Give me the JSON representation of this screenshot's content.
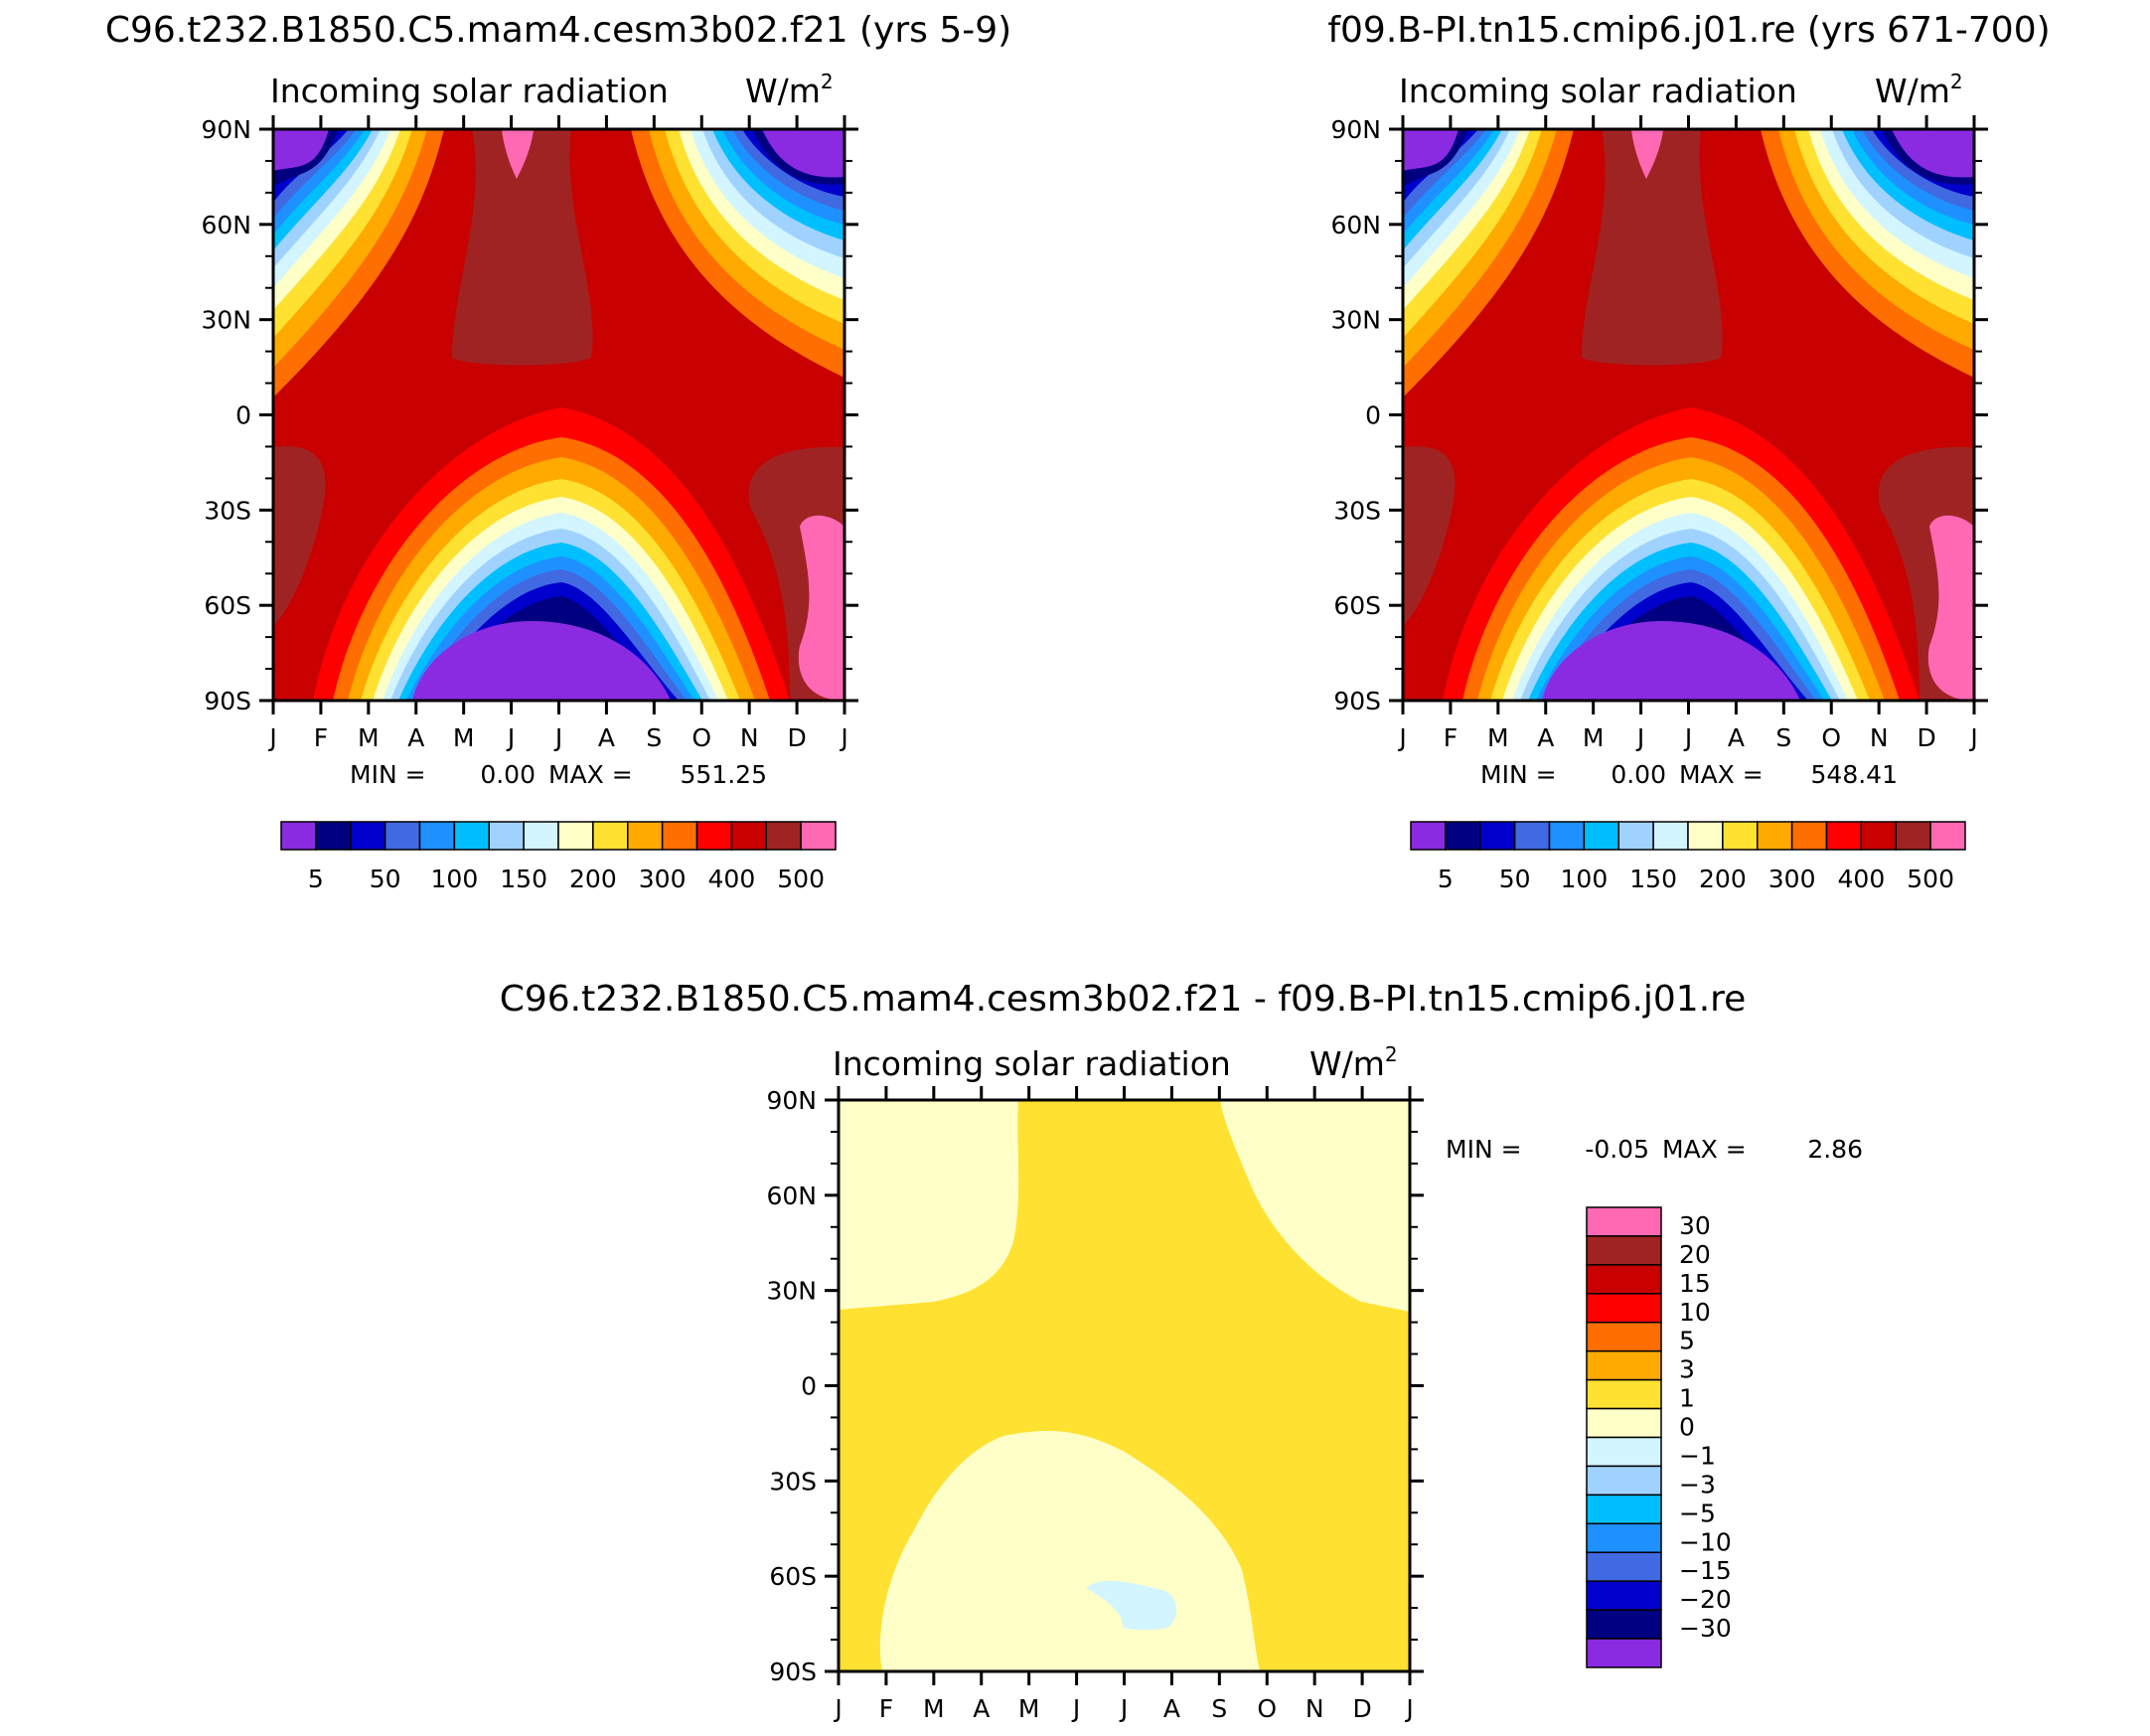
{
  "chart_data": [
    {
      "type": "heatmap",
      "title": "C96.t232.B1850.C5.mam4.cesm3b02.f21 (yrs 5-9)",
      "subtitle": "Incoming solar radiation",
      "units": "W/m",
      "units_sup": "2",
      "x_ticks": [
        "J",
        "F",
        "M",
        "A",
        "M",
        "J",
        "J",
        "A",
        "S",
        "O",
        "N",
        "D",
        "J"
      ],
      "y_ticks": [
        "90N",
        "60N",
        "30N",
        "0",
        "30S",
        "60S",
        "90S"
      ],
      "ylim": [
        -90,
        90
      ],
      "min_label": "MIN =",
      "min_value": "0.00",
      "max_label": "MAX =",
      "max_value": "551.25",
      "colorbar": {
        "levels": [
          5,
          25,
          50,
          75,
          100,
          125,
          150,
          175,
          200,
          250,
          300,
          350,
          400,
          450,
          500
        ],
        "labels": [
          "5",
          "50",
          "100",
          "150",
          "200",
          "300",
          "400",
          "500"
        ],
        "colors": [
          "#8a2be2",
          "#000080",
          "#0000cd",
          "#4169e1",
          "#1e90ff",
          "#00bfff",
          "#a0d2ff",
          "#d2f5ff",
          "#ffffc8",
          "#ffe132",
          "#ffaa00",
          "#ff6e00",
          "#ff0000",
          "#c80000",
          "#a02323",
          "#ff69b4"
        ]
      }
    },
    {
      "type": "heatmap",
      "title": "f09.B-PI.tn15.cmip6.j01.re (yrs 671-700)",
      "subtitle": "Incoming solar radiation",
      "units": "W/m",
      "units_sup": "2",
      "x_ticks": [
        "J",
        "F",
        "M",
        "A",
        "M",
        "J",
        "J",
        "A",
        "S",
        "O",
        "N",
        "D",
        "J"
      ],
      "y_ticks": [
        "90N",
        "60N",
        "30N",
        "0",
        "30S",
        "60S",
        "90S"
      ],
      "ylim": [
        -90,
        90
      ],
      "min_label": "MIN =",
      "min_value": "0.00",
      "max_label": "MAX =",
      "max_value": "548.41",
      "colorbar": {
        "levels": [
          5,
          25,
          50,
          75,
          100,
          125,
          150,
          175,
          200,
          250,
          300,
          350,
          400,
          450,
          500
        ],
        "labels": [
          "5",
          "50",
          "100",
          "150",
          "200",
          "300",
          "400",
          "500"
        ],
        "colors": [
          "#8a2be2",
          "#000080",
          "#0000cd",
          "#4169e1",
          "#1e90ff",
          "#00bfff",
          "#a0d2ff",
          "#d2f5ff",
          "#ffffc8",
          "#ffe132",
          "#ffaa00",
          "#ff6e00",
          "#ff0000",
          "#c80000",
          "#a02323",
          "#ff69b4"
        ]
      }
    },
    {
      "type": "heatmap",
      "title": "C96.t232.B1850.C5.mam4.cesm3b02.f21 - f09.B-PI.tn15.cmip6.j01.re",
      "subtitle": "Incoming solar radiation",
      "units": "W/m",
      "units_sup": "2",
      "x_ticks": [
        "J",
        "F",
        "M",
        "A",
        "M",
        "J",
        "J",
        "A",
        "S",
        "O",
        "N",
        "D",
        "J"
      ],
      "y_ticks": [
        "90N",
        "60N",
        "30N",
        "0",
        "30S",
        "60S",
        "90S"
      ],
      "ylim": [
        -90,
        90
      ],
      "min_label": "MIN =",
      "min_value": "-0.05",
      "max_label": "MAX =",
      "max_value": "2.86",
      "colorbar": {
        "levels": [
          -30,
          -20,
          -15,
          -10,
          -5,
          -3,
          -1,
          0,
          1,
          3,
          5,
          10,
          15,
          20,
          30
        ],
        "labels": [
          "30",
          "20",
          "15",
          "10",
          "5",
          "3",
          "1",
          "0",
          "-1",
          "-3",
          "-5",
          "-10",
          "-15",
          "-20",
          "-30"
        ],
        "colors": [
          "#ff69b4",
          "#a02323",
          "#c80000",
          "#ff0000",
          "#ff6e00",
          "#ffaa00",
          "#ffe132",
          "#ffffc8",
          "#d2f5ff",
          "#a0d2ff",
          "#00bfff",
          "#1e90ff",
          "#4169e1",
          "#0000cd",
          "#000080",
          "#8a2be2"
        ]
      }
    }
  ]
}
